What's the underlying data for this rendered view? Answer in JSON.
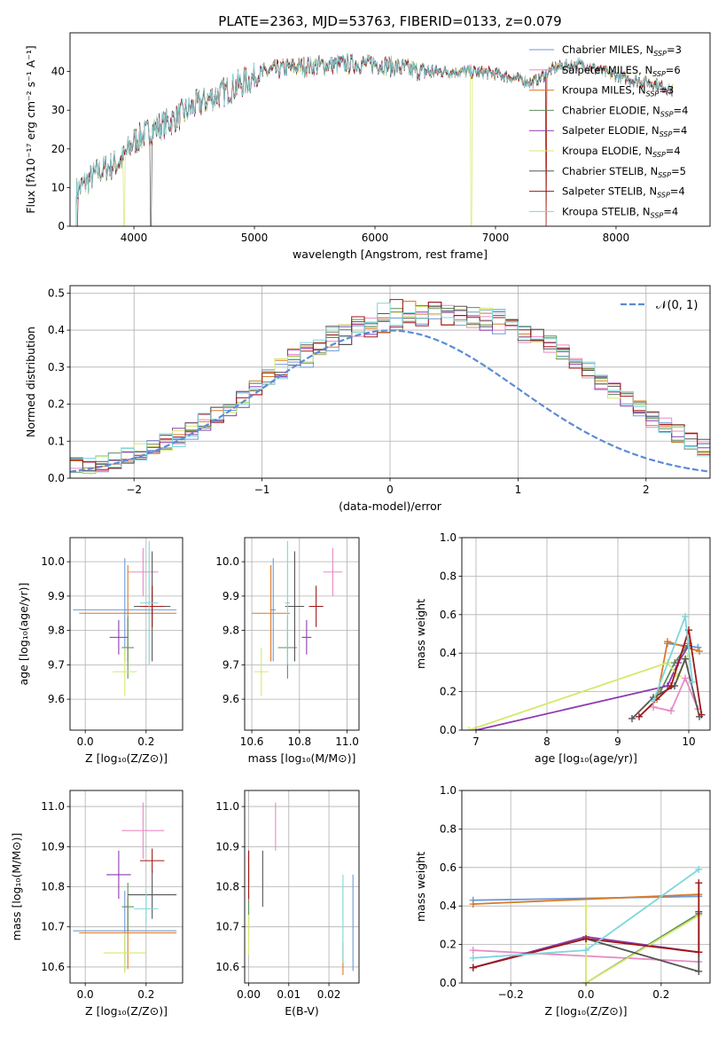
{
  "figure_title": "PLATE=2363, MJD=53763, FIBERID=0133, z=0.079",
  "colors": {
    "Chabrier MILES": "#6a9bd8",
    "Salpeter MILES": "#e88bc4",
    "Kroupa MILES": "#d87a2a",
    "Chabrier ELODIE": "#5e8f5e",
    "Salpeter ELODIE": "#8e3ab0",
    "Kroupa ELODIE": "#d4e86a",
    "Chabrier STELIB": "#555555",
    "Salpeter STELIB": "#a01818",
    "Kroupa STELIB": "#7fd6dc",
    "normal": "#5b8bd6"
  },
  "chart_data": [
    {
      "id": "spectrum",
      "type": "line",
      "title": "PLATE=2363, MJD=53763, FIBERID=0133, z=0.079",
      "xlabel": "wavelength [Angstrom, rest frame]",
      "ylabel": "Flux [fλ10⁻¹⁷ erg cm⁻² s⁻¹ A⁻¹]",
      "xlim": [
        3470,
        8780
      ],
      "ylim": [
        0,
        50
      ],
      "xticks": [
        4000,
        5000,
        6000,
        7000,
        8000
      ],
      "yticks": [
        0,
        10,
        20,
        30,
        40
      ],
      "grid": false,
      "legend_position": "upper right",
      "continuum": [
        [
          3520,
          9
        ],
        [
          3700,
          14
        ],
        [
          3900,
          17
        ],
        [
          4000,
          22
        ],
        [
          4150,
          25
        ],
        [
          4300,
          27
        ],
        [
          4500,
          31
        ],
        [
          4700,
          34
        ],
        [
          4900,
          37
        ],
        [
          5100,
          40
        ],
        [
          5300,
          41
        ],
        [
          5500,
          41.5
        ],
        [
          5800,
          42
        ],
        [
          6000,
          42
        ],
        [
          6200,
          41
        ],
        [
          6400,
          40
        ],
        [
          6600,
          40
        ],
        [
          6800,
          40
        ],
        [
          7000,
          39.5
        ],
        [
          7200,
          38
        ],
        [
          7300,
          37
        ],
        [
          7500,
          41
        ],
        [
          7700,
          42
        ],
        [
          7900,
          40
        ],
        [
          8100,
          38
        ],
        [
          8300,
          37
        ],
        [
          8470,
          35
        ]
      ],
      "series": [
        {
          "name": "Chabrier MILES, N_SSP=3",
          "label_main": "Chabrier MILES, N",
          "label_sub": "SSP",
          "label_tail": "=3",
          "color_key": "Chabrier MILES",
          "drops": []
        },
        {
          "name": "Salpeter MILES, N_SSP=6",
          "label_main": "Salpeter MILES, N",
          "label_sub": "SSP",
          "label_tail": "=6",
          "color_key": "Salpeter MILES",
          "drops": []
        },
        {
          "name": "Kroupa MILES, N_SSP=3",
          "label_main": "Kroupa MILES, N",
          "label_sub": "SSP",
          "label_tail": "=3",
          "color_key": "Kroupa MILES",
          "drops": [
            7420
          ]
        },
        {
          "name": "Chabrier ELODIE, N_SSP=4",
          "label_main": "Chabrier ELODIE, N",
          "label_sub": "SSP",
          "label_tail": "=4",
          "color_key": "Chabrier ELODIE",
          "drops": []
        },
        {
          "name": "Salpeter ELODIE, N_SSP=4",
          "label_main": "Salpeter ELODIE, N",
          "label_sub": "SSP",
          "label_tail": "=4",
          "color_key": "Salpeter ELODIE",
          "drops": []
        },
        {
          "name": "Kroupa ELODIE, N_SSP=4",
          "label_main": "Kroupa ELODIE, N",
          "label_sub": "SSP",
          "label_tail": "=4",
          "color_key": "Kroupa ELODIE",
          "drops": [
            3920,
            6800
          ]
        },
        {
          "name": "Chabrier STELIB, N_SSP=5",
          "label_main": "Chabrier STELIB, N",
          "label_sub": "SSP",
          "label_tail": "=5",
          "color_key": "Chabrier STELIB",
          "drops": [
            4140
          ]
        },
        {
          "name": "Salpeter STELIB, N_SSP=4",
          "label_main": "Salpeter STELIB, N",
          "label_sub": "SSP",
          "label_tail": "=4",
          "color_key": "Salpeter STELIB",
          "drops": [
            3530,
            7420
          ]
        },
        {
          "name": "Kroupa STELIB, N_SSP=4",
          "label_main": "Kroupa STELIB, N",
          "label_sub": "SSP",
          "label_tail": "=4",
          "color_key": "Kroupa STELIB",
          "drops": []
        }
      ]
    },
    {
      "id": "residuals",
      "type": "histogram",
      "xlabel": "(data-model)/error",
      "ylabel": "Normed distribution",
      "xlim": [
        -2.5,
        2.5
      ],
      "ylim": [
        0,
        0.52
      ],
      "xticks": [
        -2,
        -1,
        0,
        1,
        2
      ],
      "yticks": [
        0.0,
        0.1,
        0.2,
        0.3,
        0.4,
        0.5
      ],
      "grid": true,
      "legend": "𝒩(0, 1)",
      "legend_position": "upper right",
      "bin_width": 0.1,
      "reference_curve": "normal(0,1)",
      "envelope": [
        0.03,
        0.03,
        0.04,
        0.05,
        0.06,
        0.07,
        0.08,
        0.1,
        0.11,
        0.13,
        0.15,
        0.17,
        0.19,
        0.21,
        0.24,
        0.27,
        0.29,
        0.32,
        0.34,
        0.36,
        0.38,
        0.39,
        0.41,
        0.42,
        0.43,
        0.44,
        0.44,
        0.45,
        0.45,
        0.45,
        0.44,
        0.44,
        0.43,
        0.42,
        0.41,
        0.39,
        0.38,
        0.36,
        0.34,
        0.31,
        0.29,
        0.26,
        0.24,
        0.21,
        0.19,
        0.16,
        0.14,
        0.12,
        0.1,
        0.08,
        0.06
      ]
    },
    {
      "id": "age_vs_Z",
      "type": "errorbar",
      "xlabel": "Z [log₁₀(Z/Z⊙)]",
      "ylabel": "age  [log₁₀(age/yr)]",
      "xlim": [
        -0.05,
        0.32
      ],
      "ylim": [
        9.51,
        10.07
      ],
      "xticks": [
        0.0,
        0.2
      ],
      "yticks": [
        9.6,
        9.7,
        9.8,
        9.9,
        10.0
      ],
      "grid": true,
      "points": [
        {
          "s": "Chabrier MILES",
          "x": 0.13,
          "y": 9.86,
          "xerr": 0.17,
          "yerr": 0.15
        },
        {
          "s": "Salpeter MILES",
          "x": 0.19,
          "y": 9.97,
          "xerr": 0.05,
          "yerr": 0.07
        },
        {
          "s": "Kroupa MILES",
          "x": 0.14,
          "y": 9.85,
          "xerr": 0.16,
          "yerr": 0.14
        },
        {
          "s": "Chabrier ELODIE",
          "x": 0.14,
          "y": 9.75,
          "xerr": 0.02,
          "yerr": 0.09
        },
        {
          "s": "Salpeter ELODIE",
          "x": 0.11,
          "y": 9.78,
          "xerr": 0.03,
          "yerr": 0.05
        },
        {
          "s": "Kroupa ELODIE",
          "x": 0.13,
          "y": 9.68,
          "xerr": 0.04,
          "yerr": 0.07
        },
        {
          "s": "Chabrier STELIB",
          "x": 0.22,
          "y": 9.87,
          "xerr": 0.06,
          "yerr": 0.16
        },
        {
          "s": "Salpeter STELIB",
          "x": 0.22,
          "y": 9.87,
          "xerr": 0.04,
          "yerr": 0.06
        },
        {
          "s": "Kroupa STELIB",
          "x": 0.21,
          "y": 9.88,
          "xerr": 0.03,
          "yerr": 0.18
        }
      ]
    },
    {
      "id": "age_vs_mass",
      "type": "errorbar",
      "xlabel": "mass [log₁₀(M/M⊙)]",
      "ylabel": "",
      "xlim": [
        10.57,
        11.05
      ],
      "ylim": [
        9.51,
        10.07
      ],
      "xticks": [
        10.6,
        10.8,
        11.0
      ],
      "yticks": [
        9.6,
        9.7,
        9.8,
        9.9,
        10.0
      ],
      "grid": true,
      "points": [
        {
          "s": "Chabrier MILES",
          "x": 10.69,
          "y": 9.86,
          "xerr": 0.01,
          "yerr": 0.15
        },
        {
          "s": "Salpeter MILES",
          "x": 10.94,
          "y": 9.97,
          "xerr": 0.04,
          "yerr": 0.07
        },
        {
          "s": "Kroupa MILES",
          "x": 10.68,
          "y": 9.85,
          "xerr": 0.08,
          "yerr": 0.14
        },
        {
          "s": "Chabrier ELODIE",
          "x": 10.75,
          "y": 9.75,
          "xerr": 0.04,
          "yerr": 0.09
        },
        {
          "s": "Salpeter ELODIE",
          "x": 10.83,
          "y": 9.78,
          "xerr": 0.02,
          "yerr": 0.05
        },
        {
          "s": "Kroupa ELODIE",
          "x": 10.64,
          "y": 9.68,
          "xerr": 0.03,
          "yerr": 0.07
        },
        {
          "s": "Chabrier STELIB",
          "x": 10.78,
          "y": 9.87,
          "xerr": 0.04,
          "yerr": 0.16
        },
        {
          "s": "Salpeter STELIB",
          "x": 10.87,
          "y": 9.87,
          "xerr": 0.03,
          "yerr": 0.06
        },
        {
          "s": "Kroupa STELIB",
          "x": 10.75,
          "y": 9.88,
          "xerr": 0.01,
          "yerr": 0.18
        }
      ]
    },
    {
      "id": "mass_weight_vs_age",
      "type": "line",
      "xlabel": "age  [log₁₀(age/yr)]",
      "ylabel": "mass weight",
      "xlim": [
        6.8,
        10.3
      ],
      "ylim": [
        0,
        1
      ],
      "xticks": [
        7,
        8,
        9,
        10
      ],
      "yticks": [
        0.0,
        0.2,
        0.4,
        0.6,
        0.8,
        1.0
      ],
      "grid": true,
      "series": [
        {
          "s": "Chabrier MILES",
          "points": [
            [
              9.7,
              0.45
            ],
            [
              10.13,
              0.43
            ]
          ]
        },
        {
          "s": "Salpeter MILES",
          "points": [
            [
              9.5,
              0.12
            ],
            [
              9.75,
              0.1
            ],
            [
              9.95,
              0.27
            ],
            [
              10.13,
              0.11
            ]
          ]
        },
        {
          "s": "Kroupa MILES",
          "points": [
            [
              9.55,
              0.16
            ],
            [
              9.7,
              0.46
            ],
            [
              10.15,
              0.41
            ]
          ]
        },
        {
          "s": "Chabrier ELODIE",
          "points": [
            [
              9.6,
              0.2
            ],
            [
              9.8,
              0.35
            ],
            [
              10.0,
              0.45
            ]
          ]
        },
        {
          "s": "Salpeter ELODIE",
          "points": [
            [
              7.0,
              0.0
            ],
            [
              9.7,
              0.23
            ],
            [
              9.85,
              0.35
            ],
            [
              10.0,
              0.44
            ]
          ]
        },
        {
          "s": "Kroupa ELODIE",
          "points": [
            [
              6.9,
              0.0
            ],
            [
              9.7,
              0.35
            ],
            [
              9.85,
              0.28
            ],
            [
              10.0,
              0.4
            ]
          ]
        },
        {
          "s": "Chabrier STELIB",
          "points": [
            [
              9.2,
              0.06
            ],
            [
              9.5,
              0.17
            ],
            [
              9.8,
              0.23
            ],
            [
              9.95,
              0.37
            ],
            [
              10.15,
              0.07
            ]
          ]
        },
        {
          "s": "Salpeter STELIB",
          "points": [
            [
              9.3,
              0.07
            ],
            [
              9.75,
              0.23
            ],
            [
              10.0,
              0.52
            ],
            [
              10.18,
              0.08
            ]
          ]
        },
        {
          "s": "Kroupa STELIB",
          "points": [
            [
              9.5,
              0.15
            ],
            [
              9.95,
              0.59
            ],
            [
              10.05,
              0.25
            ]
          ]
        }
      ]
    },
    {
      "id": "mass_vs_Z",
      "type": "errorbar",
      "xlabel": "Z [log₁₀(Z/Z⊙)]",
      "ylabel": "mass [log₁₀(M/M⊙)]",
      "xlim": [
        -0.05,
        0.32
      ],
      "ylim": [
        10.56,
        11.04
      ],
      "xticks": [
        0.0,
        0.2
      ],
      "yticks": [
        10.6,
        10.7,
        10.8,
        10.9,
        11.0
      ],
      "grid": true,
      "points": [
        {
          "s": "Chabrier MILES",
          "x": 0.13,
          "y": 10.69,
          "xerr": 0.17,
          "yerr": 0.1
        },
        {
          "s": "Salpeter MILES",
          "x": 0.19,
          "y": 10.94,
          "xerr": 0.07,
          "yerr": 0.07
        },
        {
          "s": "Kroupa MILES",
          "x": 0.14,
          "y": 10.685,
          "xerr": 0.16,
          "yerr": 0.09
        },
        {
          "s": "Chabrier ELODIE",
          "x": 0.14,
          "y": 10.75,
          "xerr": 0.02,
          "yerr": 0.06
        },
        {
          "s": "Salpeter ELODIE",
          "x": 0.11,
          "y": 10.83,
          "xerr": 0.04,
          "yerr": 0.06
        },
        {
          "s": "Kroupa ELODIE",
          "x": 0.13,
          "y": 10.635,
          "xerr": 0.07,
          "yerr": 0.05
        },
        {
          "s": "Chabrier STELIB",
          "x": 0.22,
          "y": 10.78,
          "xerr": 0.08,
          "yerr": 0.06
        },
        {
          "s": "Salpeter STELIB",
          "x": 0.22,
          "y": 10.865,
          "xerr": 0.04,
          "yerr": 0.03
        },
        {
          "s": "Kroupa STELIB",
          "x": 0.2,
          "y": 10.745,
          "xerr": 0.04,
          "yerr": 0.04
        }
      ]
    },
    {
      "id": "mass_vs_EBV",
      "type": "errorbar",
      "xlabel": "E(B-V)",
      "ylabel": "",
      "xlim": [
        -0.001,
        0.0275
      ],
      "ylim": [
        10.56,
        11.04
      ],
      "xticks": [
        0.0,
        0.01,
        0.02
      ],
      "yticks": [
        10.6,
        10.7,
        10.8,
        10.9,
        11.0
      ],
      "grid": true,
      "points": [
        {
          "s": "Chabrier MILES",
          "x": 0.026,
          "y": 10.71,
          "xerr": 0,
          "yerr": 0.12
        },
        {
          "s": "Salpeter MILES",
          "x": 0.0067,
          "y": 10.95,
          "xerr": 0,
          "yerr": 0.06
        },
        {
          "s": "Kroupa MILES",
          "x": 0.0235,
          "y": 10.62,
          "xerr": 0,
          "yerr": 0.04
        },
        {
          "s": "Chabrier ELODIE",
          "x": 0.0,
          "y": 10.73,
          "xerr": 0,
          "yerr": 0.05
        },
        {
          "s": "Salpeter ELODIE",
          "x": 0.0,
          "y": 10.85,
          "xerr": 0,
          "yerr": 0.04
        },
        {
          "s": "Kroupa ELODIE",
          "x": 0.0,
          "y": 10.68,
          "xerr": 0,
          "yerr": 0.05
        },
        {
          "s": "Chabrier STELIB",
          "x": 0.0035,
          "y": 10.82,
          "xerr": 0,
          "yerr": 0.07
        },
        {
          "s": "Salpeter STELIB",
          "x": 0.0,
          "y": 10.83,
          "xerr": 0,
          "yerr": 0.06
        },
        {
          "s": "Kroupa STELIB",
          "x": 0.0235,
          "y": 10.72,
          "xerr": 0,
          "yerr": 0.11
        }
      ]
    },
    {
      "id": "mass_weight_vs_Z",
      "type": "line",
      "xlabel": "Z [log₁₀(Z/Z⊙)]",
      "ylabel": "mass weight",
      "xlim": [
        -0.33,
        0.33
      ],
      "ylim": [
        0,
        1
      ],
      "xticks": [
        -0.2,
        0.0,
        0.2
      ],
      "yticks": [
        0.0,
        0.2,
        0.4,
        0.6,
        0.8,
        1.0
      ],
      "grid": true,
      "series": [
        {
          "s": "Chabrier MILES",
          "points": [
            [
              -0.3,
              0.43
            ],
            [
              0.3,
              0.45
            ]
          ]
        },
        {
          "s": "Salpeter MILES",
          "points": [
            [
              -0.3,
              0.17
            ],
            [
              0.3,
              0.11
            ]
          ]
        },
        {
          "s": "Kroupa MILES",
          "points": [
            [
              -0.3,
              0.41
            ],
            [
              0.3,
              0.46
            ]
          ]
        },
        {
          "s": "Chabrier ELODIE",
          "points": [
            [
              0.0,
              0.0
            ],
            [
              0.3,
              0.36
            ]
          ]
        },
        {
          "s": "Salpeter ELODIE",
          "points": [
            [
              -0.3,
              0.08
            ],
            [
              0.0,
              0.24
            ],
            [
              0.3,
              0.16
            ]
          ]
        },
        {
          "s": "Kroupa ELODIE",
          "points": [
            [
              0.0,
              0.4
            ],
            [
              0.0,
              0.0
            ],
            [
              0.3,
              0.35
            ]
          ]
        },
        {
          "s": "Chabrier STELIB",
          "points": [
            [
              -0.3,
              0.08
            ],
            [
              0.0,
              0.23
            ],
            [
              0.3,
              0.06
            ],
            [
              0.3,
              0.37
            ]
          ]
        },
        {
          "s": "Salpeter STELIB",
          "points": [
            [
              -0.3,
              0.08
            ],
            [
              0.0,
              0.23
            ],
            [
              0.3,
              0.16
            ],
            [
              0.3,
              0.52
            ]
          ]
        },
        {
          "s": "Kroupa STELIB",
          "points": [
            [
              -0.3,
              0.13
            ],
            [
              0.0,
              0.17
            ],
            [
              0.3,
              0.59
            ]
          ]
        }
      ]
    }
  ]
}
